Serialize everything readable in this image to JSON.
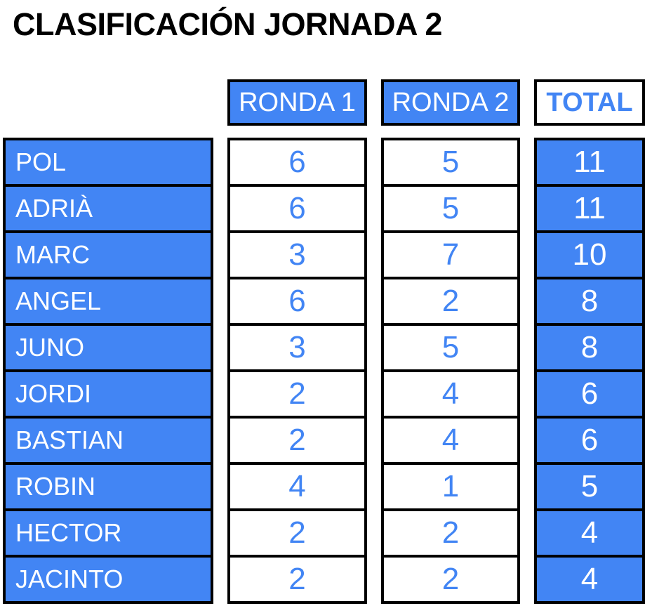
{
  "title": "CLASIFICACIÓN JORNADA 2",
  "colors": {
    "blue": "#4285F4",
    "border": "#000000",
    "cell_text_light": "#FFFFFF",
    "title_text": "#000000",
    "background": "#FFFFFF"
  },
  "table": {
    "headers": [
      "RONDA 1",
      "RONDA 2",
      "TOTAL"
    ],
    "rows": [
      {
        "name": "POL",
        "r1": 6,
        "r2": 5,
        "total": 11
      },
      {
        "name": "ADRIÀ",
        "r1": 6,
        "r2": 5,
        "total": 11
      },
      {
        "name": "MARC",
        "r1": 3,
        "r2": 7,
        "total": 10
      },
      {
        "name": "ANGEL",
        "r1": 6,
        "r2": 2,
        "total": 8
      },
      {
        "name": "JUNO",
        "r1": 3,
        "r2": 5,
        "total": 8
      },
      {
        "name": "JORDI",
        "r1": 2,
        "r2": 4,
        "total": 6
      },
      {
        "name": "BASTIAN",
        "r1": 2,
        "r2": 4,
        "total": 6
      },
      {
        "name": "ROBIN",
        "r1": 4,
        "r2": 1,
        "total": 5
      },
      {
        "name": "HECTOR",
        "r1": 2,
        "r2": 2,
        "total": 4
      },
      {
        "name": "JACINTO",
        "r1": 2,
        "r2": 2,
        "total": 4
      }
    ]
  }
}
